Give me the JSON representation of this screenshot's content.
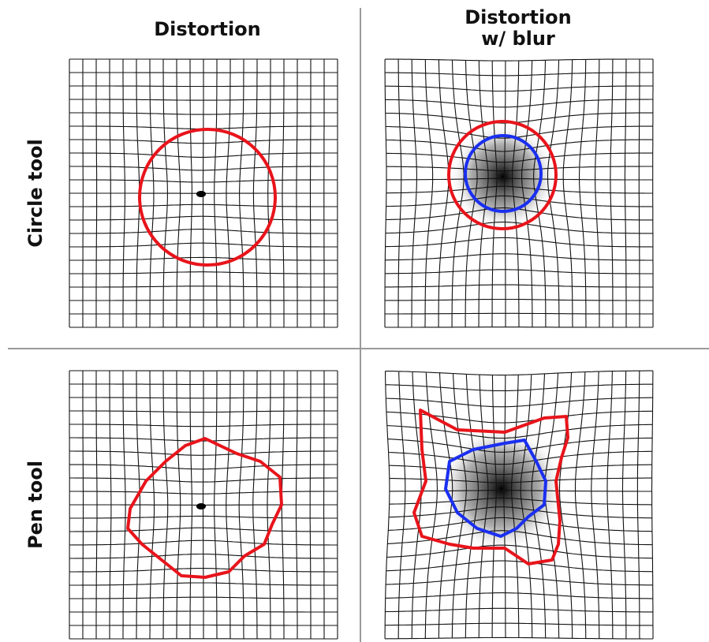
{
  "columns": [
    [
      "Distortion"
    ],
    [
      "Distortion",
      "w/ blur"
    ]
  ],
  "rows": [
    "Circle tool",
    "Pen tool"
  ]
}
